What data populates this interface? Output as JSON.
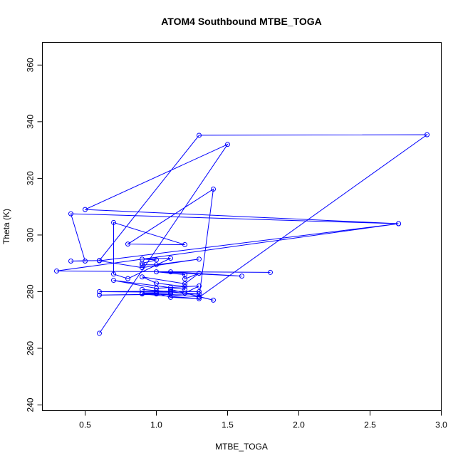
{
  "chart_data": {
    "type": "line",
    "title": "ATOM4 Southbound MTBE_TOGA",
    "xlabel": "MTBE_TOGA",
    "ylabel": "Theta (K)",
    "xlim": [
      0.2,
      3.0
    ],
    "ylim": [
      238,
      368
    ],
    "xticks": [
      0.5,
      1.0,
      1.5,
      2.0,
      2.5,
      3.0
    ],
    "xtick_labels": [
      "0.5",
      "1.0",
      "1.5",
      "2.0",
      "2.5",
      "3.0"
    ],
    "yticks": [
      240,
      260,
      280,
      300,
      320,
      340,
      360
    ],
    "ytick_labels": [
      "240",
      "260",
      "280",
      "300",
      "320",
      "340",
      "360"
    ],
    "grid": false,
    "markers": "open-circle",
    "color": "#0000ff",
    "x": [
      0.6,
      1.5,
      0.5,
      2.7,
      0.4,
      0.5,
      0.4,
      0.6,
      1.3,
      2.9,
      1.3,
      1.4,
      0.8,
      1.2,
      0.7,
      0.7,
      0.8,
      1.1,
      0.9,
      1.0,
      0.9,
      0.9,
      1.0,
      1.3,
      0.9,
      0.6,
      2.7,
      0.3,
      1.8,
      1.1,
      1.6,
      1.0,
      1.2,
      1.2,
      1.3,
      1.2,
      0.9,
      1.0,
      1.2,
      1.2,
      0.7,
      1.0,
      1.1,
      1.3,
      1.2,
      0.9,
      1.1,
      0.6,
      1.1,
      1.3,
      1.0,
      1.3,
      0.6,
      1.1,
      0.9,
      1.0,
      1.1,
      1.3,
      0.9,
      1.0,
      1.3,
      1.4,
      1.1
    ],
    "y": [
      265.3,
      332.0,
      309.0,
      304.0,
      307.5,
      290.8,
      290.8,
      291.0,
      335.2,
      335.4,
      278.0,
      316.2,
      296.8,
      296.6,
      304.4,
      286.2,
      284.6,
      291.8,
      291.5,
      291.2,
      290.0,
      289.5,
      289.5,
      291.5,
      288.5,
      290.9,
      304.0,
      287.3,
      286.8,
      287.0,
      285.5,
      287.0,
      286.0,
      284.5,
      286.5,
      282.8,
      285.2,
      283.0,
      281.8,
      280.8,
      284.0,
      281.2,
      281.5,
      282.0,
      279.5,
      280.8,
      279.8,
      280.0,
      280.2,
      280.0,
      280.2,
      279.2,
      278.8,
      279.2,
      279.5,
      279.5,
      278.0,
      277.5,
      279.2,
      279.2,
      278.2,
      277.0,
      280.8
    ]
  }
}
